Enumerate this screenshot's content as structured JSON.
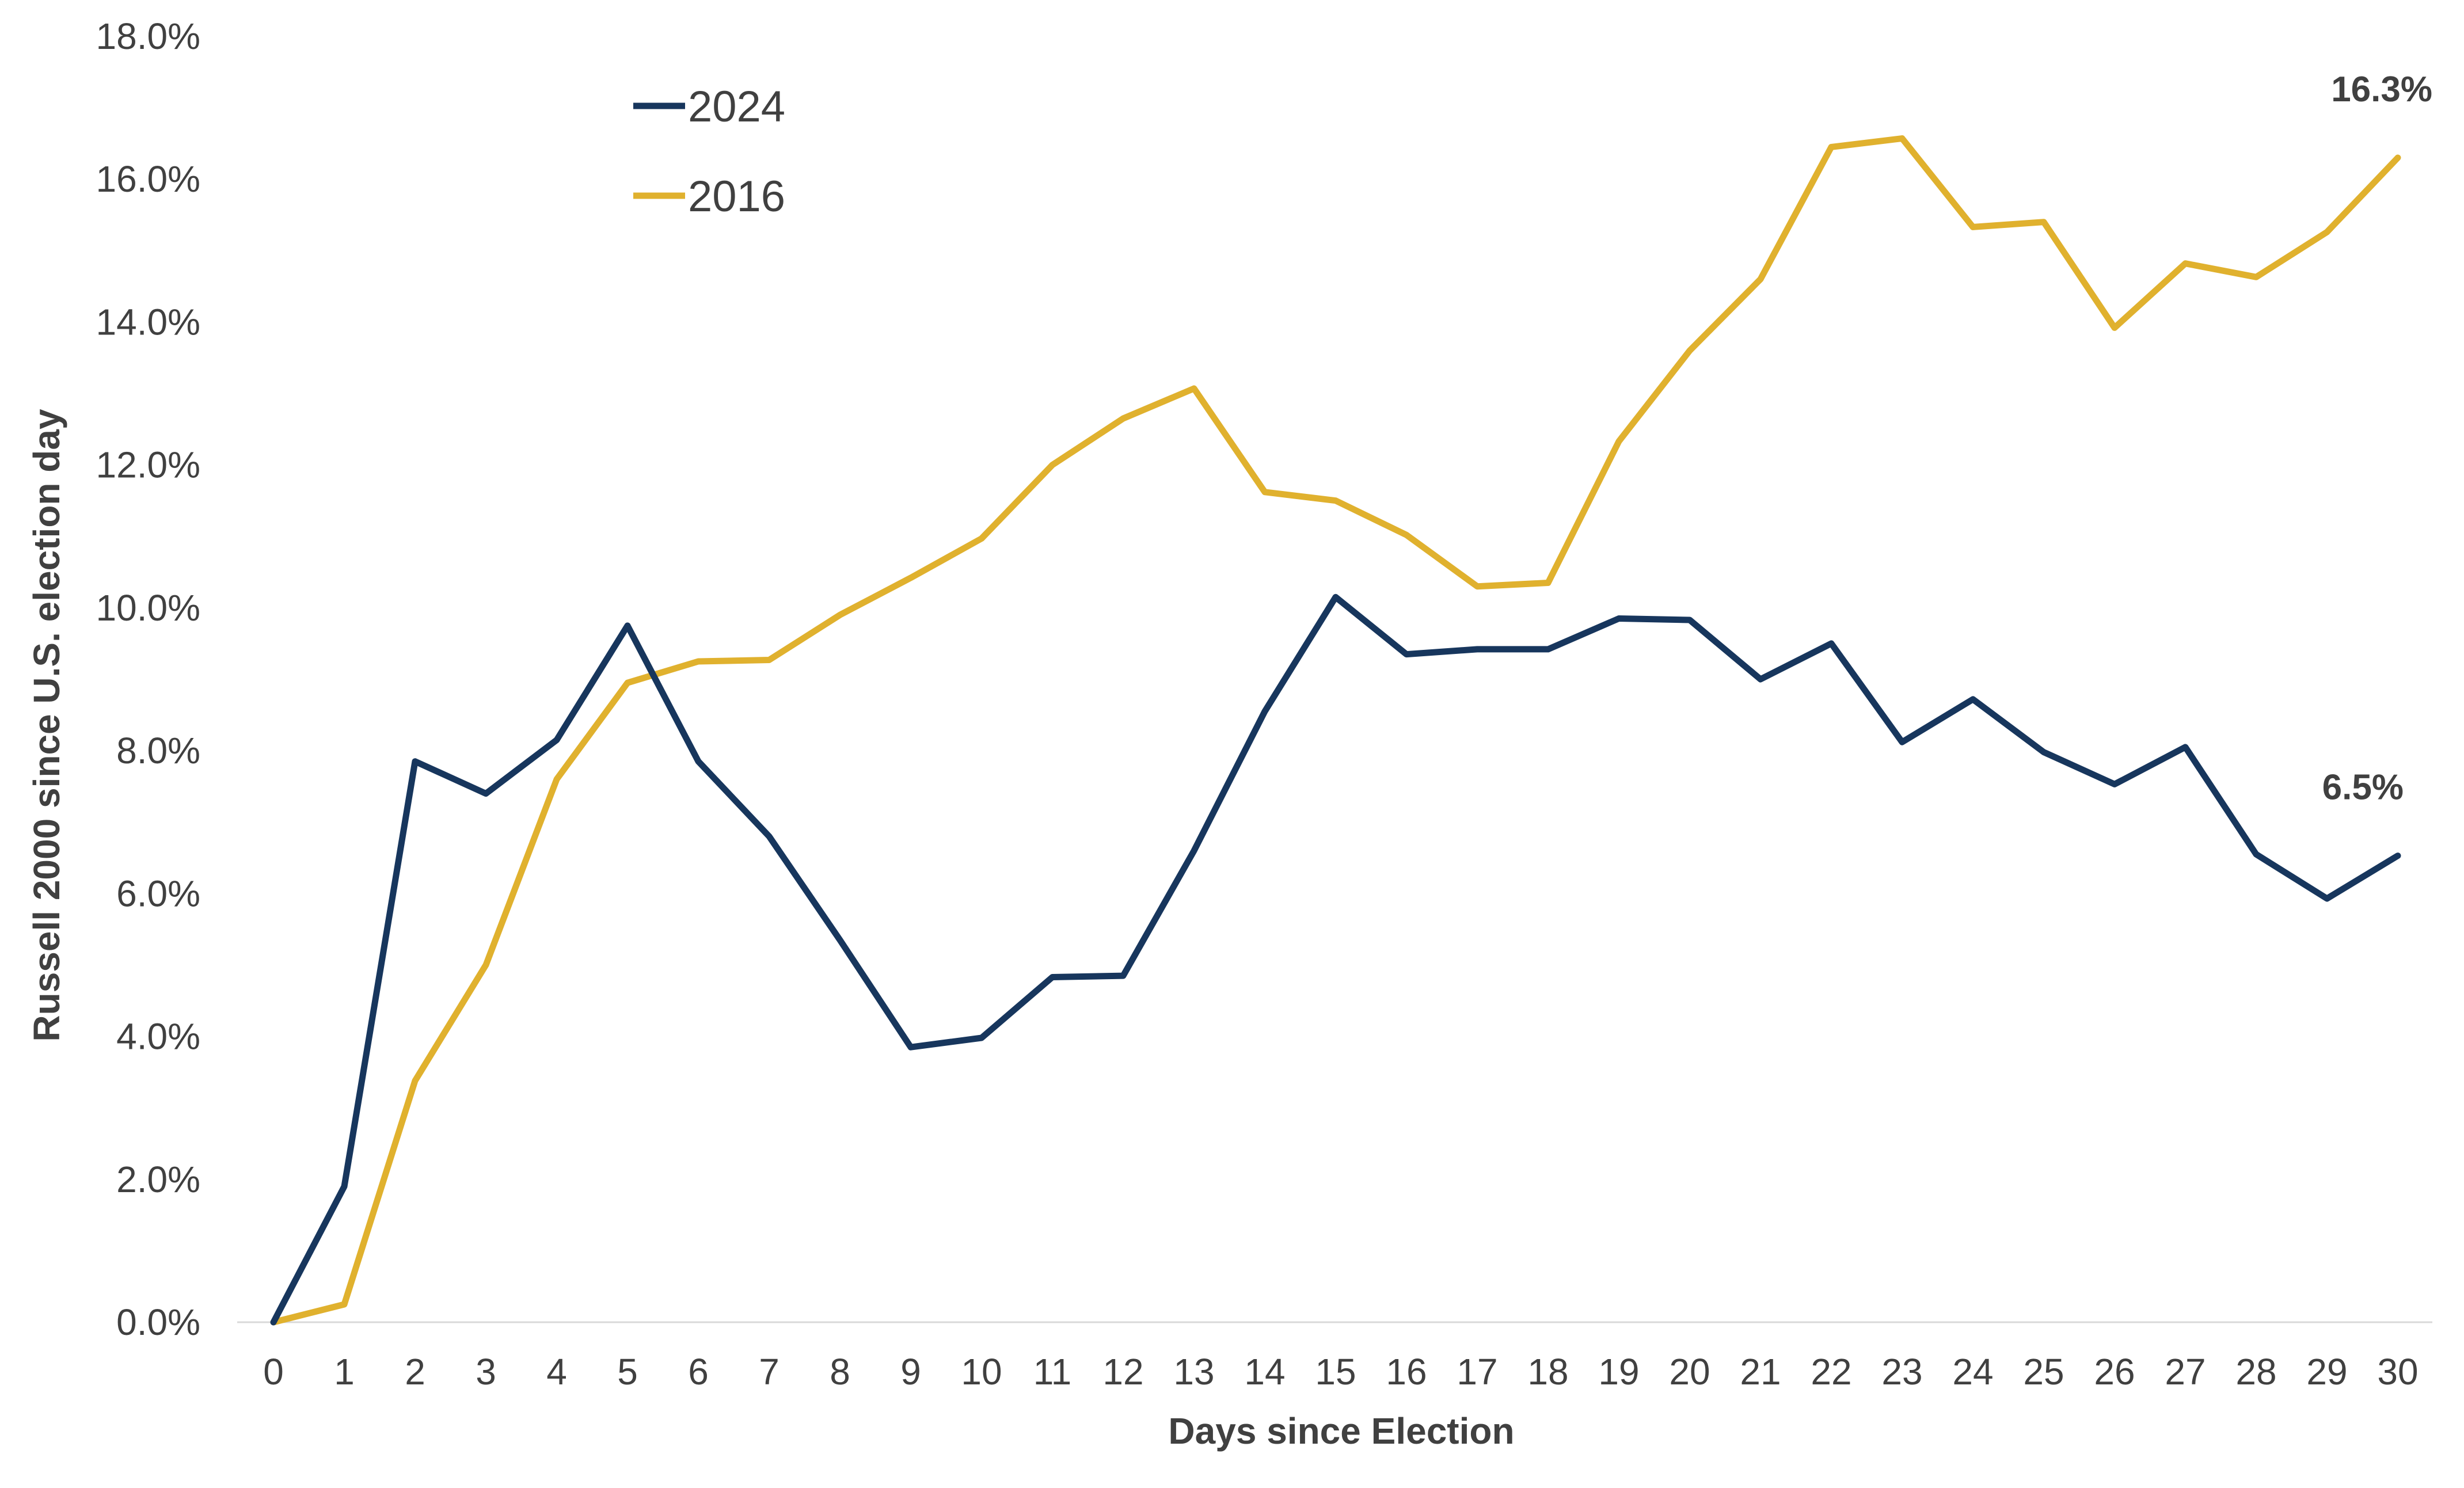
{
  "chart_data": {
    "type": "line",
    "title": "",
    "xlabel": "Days since Election",
    "ylabel": "Russell 2000 since U.S. election day",
    "x": [
      0,
      1,
      2,
      3,
      4,
      5,
      6,
      7,
      8,
      9,
      10,
      11,
      12,
      13,
      14,
      15,
      16,
      17,
      18,
      19,
      20,
      21,
      22,
      23,
      24,
      25,
      26,
      27,
      28,
      29,
      30
    ],
    "x_tick_labels": [
      "0",
      "1",
      "2",
      "3",
      "4",
      "5",
      "6",
      "7",
      "8",
      "9",
      "10",
      "11",
      "12",
      "13",
      "14",
      "15",
      "16",
      "17",
      "18",
      "19",
      "20",
      "21",
      "22",
      "23",
      "24",
      "25",
      "26",
      "27",
      "28",
      "29",
      "30"
    ],
    "xlim": [
      0,
      30
    ],
    "ylim": [
      0,
      18
    ],
    "y_ticks": [
      0,
      2,
      4,
      6,
      8,
      10,
      12,
      14,
      16,
      18
    ],
    "y_tick_labels": [
      "0.0%",
      "2.0%",
      "4.0%",
      "6.0%",
      "8.0%",
      "10.0%",
      "12.0%",
      "14.0%",
      "16.0%",
      "18.0%"
    ],
    "grid": false,
    "legend_position": "top-left",
    "series": [
      {
        "name": "2024",
        "color": "#17365d",
        "values": [
          0.0,
          1.9,
          7.85,
          7.4,
          8.15,
          9.75,
          7.85,
          6.8,
          5.35,
          3.85,
          3.98,
          4.83,
          4.85,
          6.6,
          8.55,
          10.15,
          9.35,
          9.42,
          9.42,
          9.85,
          9.83,
          9.0,
          9.5,
          8.12,
          8.72,
          7.98,
          7.53,
          8.05,
          6.55,
          5.93,
          6.53
        ],
        "end_label": "6.5%"
      },
      {
        "name": "2016",
        "color": "#e0b12e",
        "values": [
          0.0,
          0.25,
          3.38,
          5.0,
          7.6,
          8.95,
          9.25,
          9.27,
          9.9,
          10.42,
          10.97,
          12.0,
          12.65,
          13.07,
          11.62,
          11.5,
          11.02,
          10.3,
          10.35,
          12.33,
          13.6,
          14.6,
          16.45,
          16.57,
          15.33,
          15.4,
          13.92,
          14.82,
          14.63,
          15.26,
          16.3
        ],
        "end_label": "16.3%"
      }
    ]
  }
}
